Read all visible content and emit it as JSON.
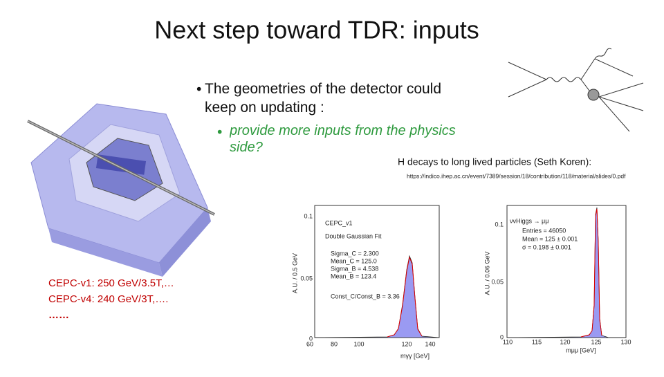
{
  "title": "Next step toward TDR: inputs",
  "bullets": [
    {
      "text": "The geometries of the detector could keep on updating :",
      "sub": "provide more inputs from the physics side?"
    }
  ],
  "detector": {
    "lines": [
      "CEPC-v1:  250 GeV/3.5T,…",
      "CEPC-v4:  240 GeV/3T,….",
      "……"
    ]
  },
  "reference": {
    "caption": "H decays to long lived particles (Seth Koren):",
    "url": "https://indico.ihep.ac.cn/event/7389/session/18/contribution/118/material/slides/0.pdf"
  },
  "plots": [
    {
      "ylabel": "A.U. / 0.5 GeV",
      "yticks": [
        "0.1",
        "0.05",
        "0"
      ],
      "xticks": [
        "60",
        "80",
        "100",
        "120",
        "140"
      ],
      "xlabel": "mγγ [GeV]",
      "legend": [
        "CEPC_v1",
        "Double Gaussian Fit",
        "Sigma_C = 2.300",
        "Mean_C = 125.0",
        "Sigma_B = 4.538",
        "Mean_B = 123.4",
        "Const_C/Const_B = 3.36"
      ]
    },
    {
      "ylabel": "A.U. / 0.06 GeV",
      "yticks": [
        "0.1",
        "0.05",
        "0"
      ],
      "xticks": [
        "110",
        "115",
        "120",
        "125",
        "130"
      ],
      "xlabel": "mμμ [GeV]",
      "legend": [
        "ννHiggs → μμ",
        "Entries = 46050",
        "Mean = 125 ± 0.001",
        "σ = 0.198 ± 0.001"
      ]
    }
  ]
}
